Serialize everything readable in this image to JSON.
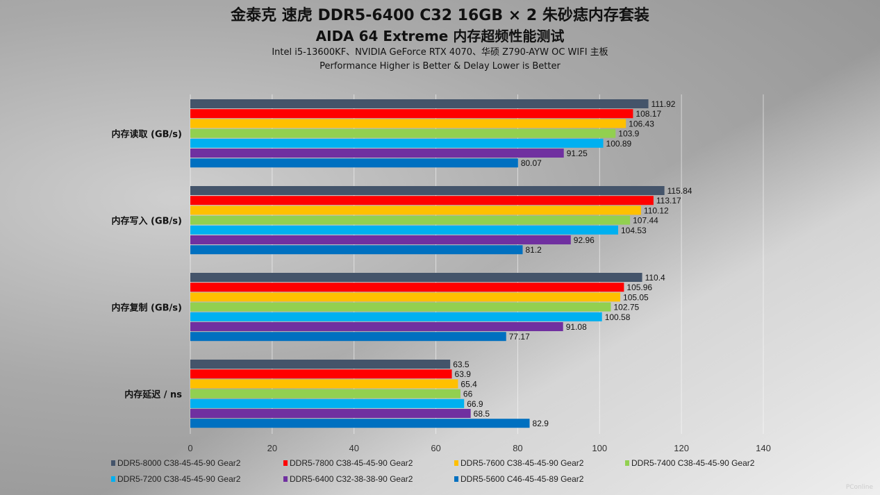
{
  "watermark": "PConline",
  "chart_data": {
    "type": "bar",
    "orientation": "horizontal",
    "title": "金泰克 速虎 DDR5-6400 C32 16GB × 2 朱砂痣内存套装",
    "subtitle": "AIDA 64 Extreme 内存超频性能测试",
    "subtitle2": "Intel i5-13600KF、NVIDIA GeForce RTX 4070、华硕 Z790-AYW OC WIFI 主板",
    "subtitle3": "Performance Higher is Better & Delay Lower is Better",
    "categories": [
      "内存读取 (GB/s)",
      "内存写入 (GB/s)",
      "内存复制 (GB/s)",
      "内存延迟 / ns"
    ],
    "series": [
      {
        "name": "DDR5-8000 C38-45-45-90 Gear2",
        "color": "#44546a",
        "values": [
          111.92,
          115.84,
          110.4,
          63.5
        ]
      },
      {
        "name": "DDR5-7800 C38-45-45-90 Gear2",
        "color": "#ff0000",
        "values": [
          108.17,
          113.17,
          105.96,
          63.9
        ]
      },
      {
        "name": "DDR5-7600 C38-45-45-90 Gear2",
        "color": "#ffc000",
        "values": [
          106.43,
          110.12,
          105.05,
          65.4
        ]
      },
      {
        "name": "DDR5-7400 C38-45-45-90 Gear2",
        "color": "#92d050",
        "values": [
          103.9,
          107.44,
          102.75,
          66
        ]
      },
      {
        "name": "DDR5-7200 C38-45-45-90 Gear2",
        "color": "#00b0f0",
        "values": [
          100.89,
          104.53,
          100.58,
          66.9
        ]
      },
      {
        "name": "DDR5-6400 C32-38-38-90 Gear2",
        "color": "#7030a0",
        "values": [
          91.25,
          92.96,
          91.08,
          68.5
        ]
      },
      {
        "name": "DDR5-5600 C46-45-45-89 Gear2",
        "color": "#0070c0",
        "values": [
          80.07,
          81.2,
          77.17,
          82.9
        ]
      }
    ],
    "xlim": [
      0,
      140
    ],
    "xticks": [
      0,
      20,
      40,
      60,
      80,
      100,
      120,
      140
    ],
    "grid": true,
    "legend": "bottom"
  }
}
